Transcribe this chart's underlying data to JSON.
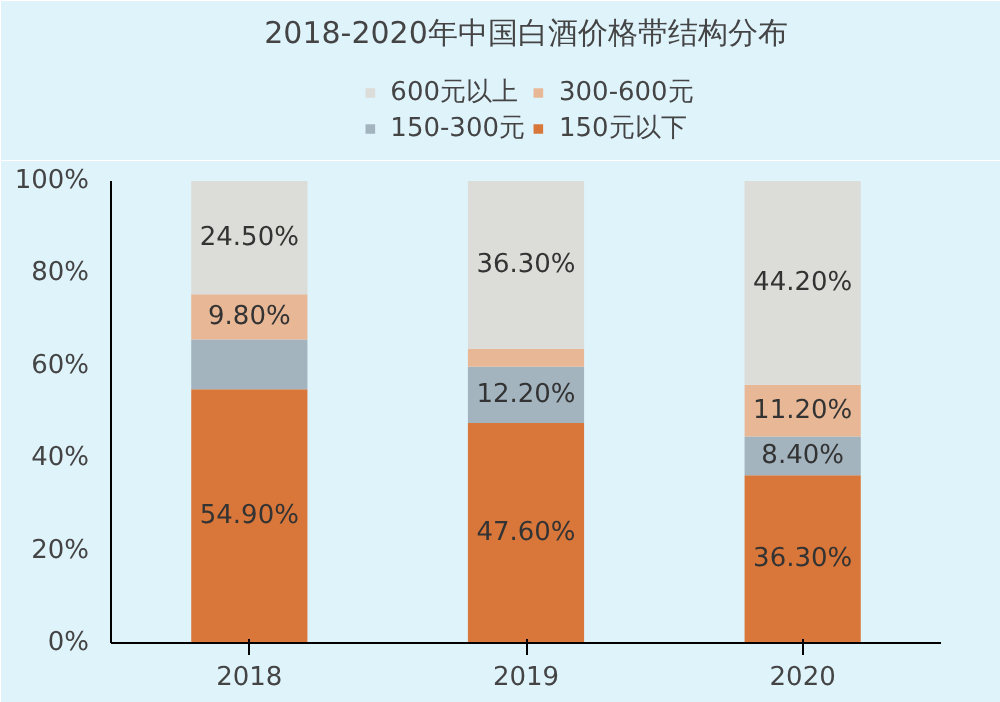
{
  "chart_data": {
    "type": "bar",
    "stacked": true,
    "title": "2018-2020年中国白酒价格带结构分布",
    "categories": [
      "2018",
      "2019",
      "2020"
    ],
    "series": [
      {
        "name": "150元以下",
        "color": "#d9773a",
        "values": [
          54.9,
          47.6,
          36.3
        ],
        "value_labels": [
          "54.90%",
          "47.60%",
          "36.30%"
        ]
      },
      {
        "name": "150-300元",
        "color": "#a3b4bf",
        "values": [
          10.8,
          12.2,
          8.4
        ],
        "value_labels": [
          null,
          "12.20%",
          "8.40%"
        ]
      },
      {
        "name": "300-600元",
        "color": "#e8b896",
        "values": [
          9.8,
          3.9,
          11.2
        ],
        "value_labels": [
          "9.80%",
          null,
          "11.20%"
        ]
      },
      {
        "name": "600元以上",
        "color": "#dcdcd8",
        "values": [
          24.5,
          36.3,
          44.2
        ],
        "value_labels": [
          "24.50%",
          "36.30%",
          "44.20%"
        ]
      }
    ],
    "ylim": [
      0,
      100
    ],
    "yticks": [
      {
        "value": 0,
        "label": "0%"
      },
      {
        "value": 20,
        "label": "20%"
      },
      {
        "value": 40,
        "label": "40%"
      },
      {
        "value": 60,
        "label": "60%"
      },
      {
        "value": 80,
        "label": "80%"
      },
      {
        "value": 100,
        "label": "100%"
      }
    ],
    "grid": false,
    "legend": "top"
  }
}
